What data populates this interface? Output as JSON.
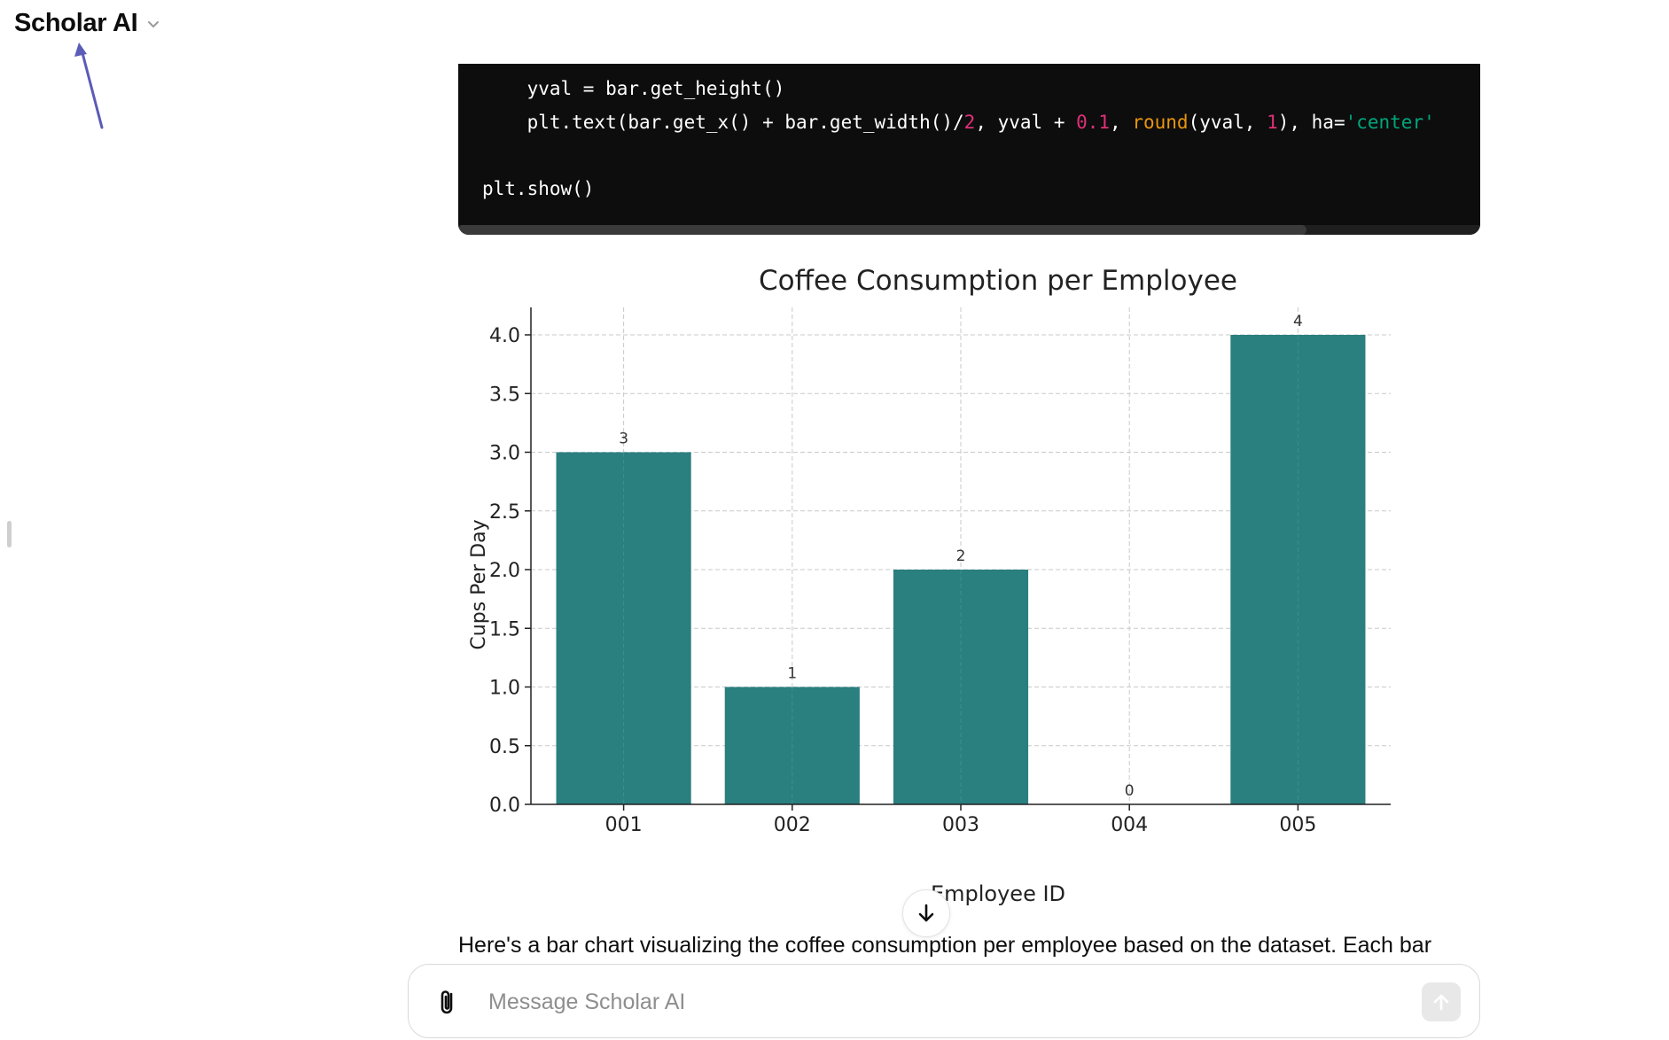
{
  "app": {
    "title": "Scholar AI"
  },
  "code_block": {
    "lines": [
      [
        {
          "t": "    yval = bar.get_height()",
          "c": ""
        }
      ],
      [
        {
          "t": "    plt.text(bar.get_x() + bar.get_width()/",
          "c": ""
        },
        {
          "t": "2",
          "c": "num"
        },
        {
          "t": ", yval + ",
          "c": ""
        },
        {
          "t": "0.1",
          "c": "num"
        },
        {
          "t": ", ",
          "c": ""
        },
        {
          "t": "round",
          "c": "fn"
        },
        {
          "t": "(yval, ",
          "c": ""
        },
        {
          "t": "1",
          "c": "num"
        },
        {
          "t": "), ha=",
          "c": ""
        },
        {
          "t": "'center'",
          "c": "str"
        }
      ],
      [
        {
          "t": "",
          "c": ""
        }
      ],
      [
        {
          "t": "plt.show()",
          "c": ""
        }
      ]
    ]
  },
  "chart_data": {
    "type": "bar",
    "title": "Coffee Consumption per Employee",
    "xlabel": "Employee ID",
    "ylabel": "Cups Per Day",
    "categories": [
      "001",
      "002",
      "003",
      "004",
      "005"
    ],
    "values": [
      3,
      1,
      2,
      0,
      4
    ],
    "data_labels": [
      "3",
      "1",
      "2",
      "0",
      "4"
    ],
    "yticks": [
      "0.0",
      "0.5",
      "1.0",
      "1.5",
      "2.0",
      "2.5",
      "3.0",
      "3.5",
      "4.0"
    ],
    "ylim": [
      0,
      4
    ],
    "grid": true,
    "bar_color": "#2a7f7f"
  },
  "response": {
    "text": "Here's a bar chart visualizing the coffee consumption per employee based on the dataset. Each bar"
  },
  "composer": {
    "placeholder": "Message Scholar AI"
  },
  "colors": {
    "annotation_arrow": "#5b5bb8",
    "code_bg": "#0d0d0d",
    "accent_bar": "#2a7f7f"
  },
  "icons": {
    "title_dropdown": "chevron-down-icon",
    "annotation": "arrow-icon",
    "attach": "paperclip-icon",
    "send": "arrow-up-icon",
    "scroll": "arrow-down-icon"
  }
}
